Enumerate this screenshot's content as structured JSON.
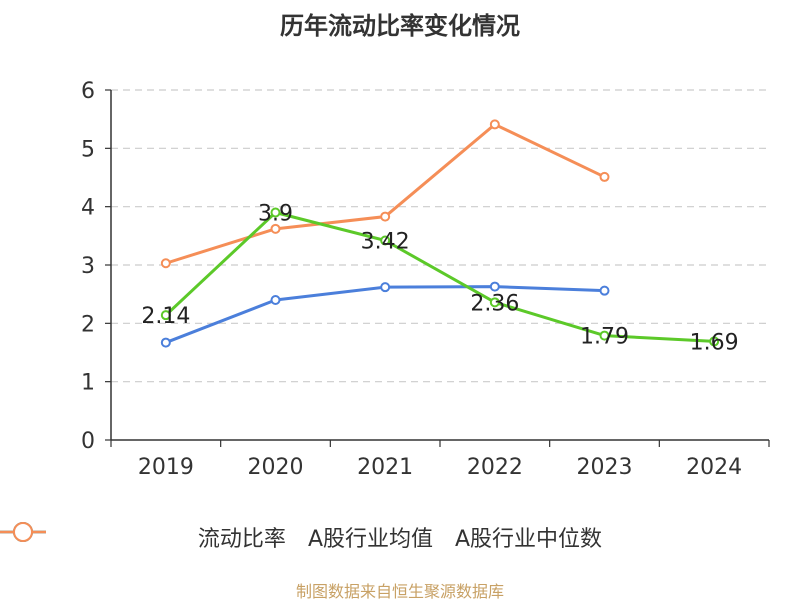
{
  "chart_data": {
    "type": "line",
    "title": "历年流动比率变化情况",
    "categories": [
      "2019",
      "2020",
      "2021",
      "2022",
      "2023",
      "2024"
    ],
    "ylim": [
      0,
      6
    ],
    "yticks": [
      0,
      1,
      2,
      3,
      4,
      5,
      6
    ],
    "grid": true,
    "legend_position": "bottom",
    "series": [
      {
        "name": "流动比率",
        "color": "#5cc929",
        "values": [
          2.14,
          3.9,
          3.42,
          2.36,
          1.79,
          1.69
        ],
        "labels": [
          "2.14",
          "3.9",
          "3.42",
          "2.36",
          "1.79",
          "1.69"
        ]
      },
      {
        "name": "A股行业均值",
        "color": "#4b7fdb",
        "values": [
          1.67,
          2.4,
          2.62,
          2.63,
          2.56,
          null
        ]
      },
      {
        "name": "A股行业中位数",
        "color": "#f58e57",
        "values": [
          3.03,
          3.62,
          3.83,
          5.41,
          4.51,
          null
        ]
      }
    ]
  },
  "source": "制图数据来自恒生聚源数据库"
}
